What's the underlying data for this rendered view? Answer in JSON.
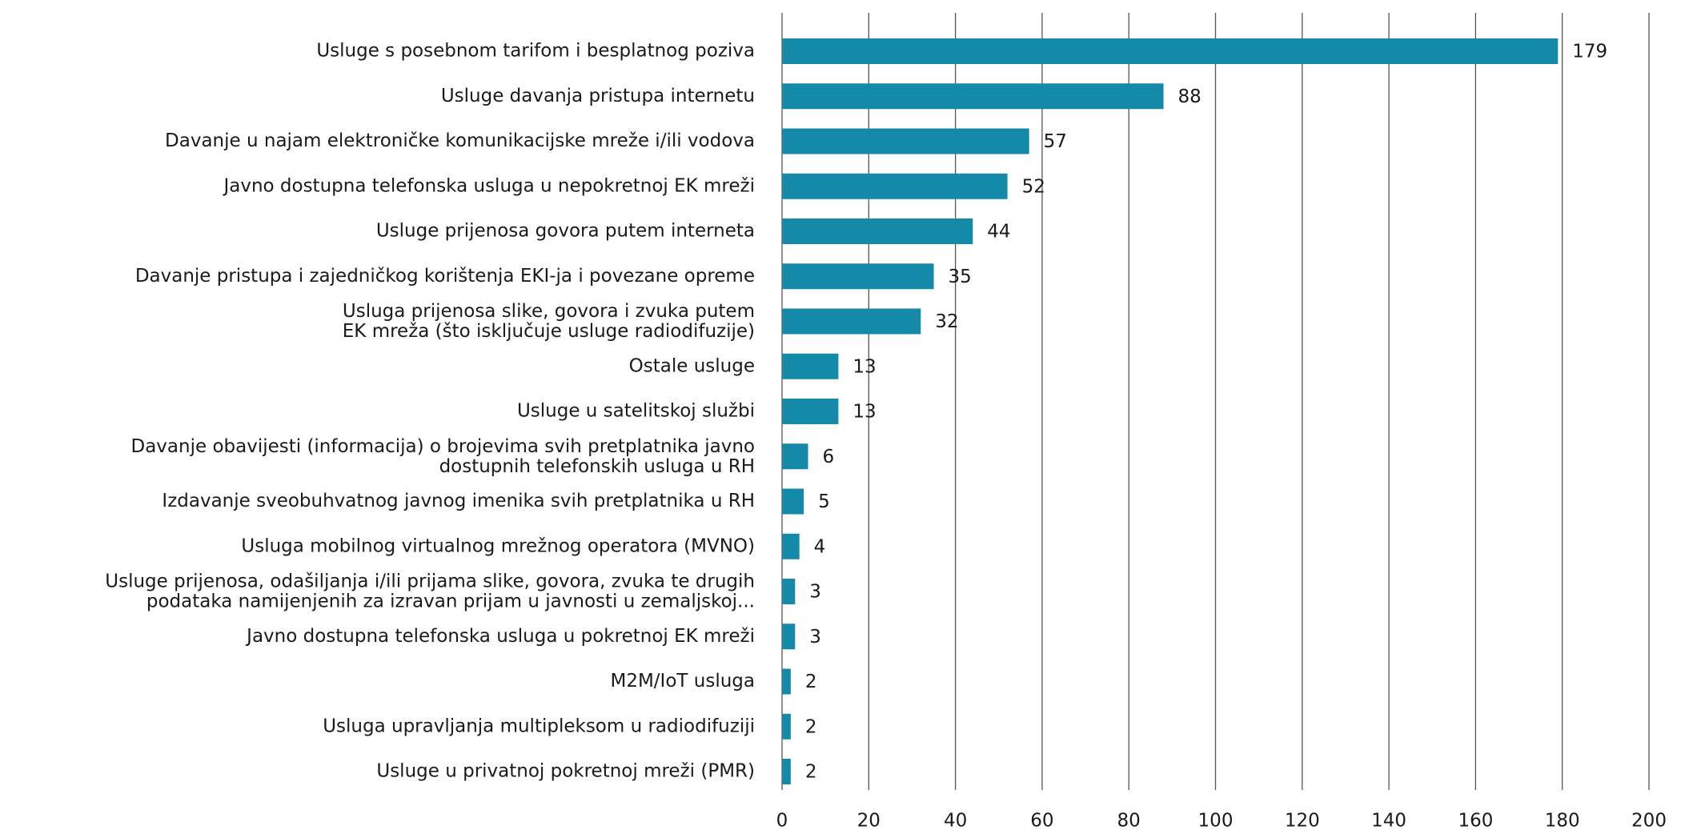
{
  "chart_data": {
    "type": "bar",
    "orientation": "horizontal",
    "categories": [
      "Usluge s posebnom tarifom i besplatnog poziva",
      "Usluge davanja pristupa internetu",
      "Davanje u najam elektroničke komunikacijske mreže i/ili vodova",
      "Javno dostupna telefonska usluga u nepokretnoj EK mreži",
      "Usluge prijenosa govora putem interneta",
      "Davanje pristupa i zajedničkog korištenja EKI-ja i povezane opreme",
      [
        "Usluga prijenosa slike, govora i zvuka putem",
        "EK mreža (što isključuje usluge radiodifuzije)"
      ],
      "Ostale usluge",
      "Usluge u satelitskoj službi",
      [
        "Davanje obavijesti (informacija) o brojevima svih pretplatnika javno",
        "dostupnih telefonskih usluga u RH"
      ],
      "Izdavanje sveobuhvatnog javnog imenika svih pretplatnika u RH",
      "Usluga mobilnog virtualnog mrežnog operatora (MVNO)",
      [
        "Usluge prijenosa, odašiljanja i/ili prijama slike, govora, zvuka te drugih",
        "podataka namijenjenih za izravan prijam u javnosti u zemaljskoj..."
      ],
      "Javno dostupna telefonska usluga u pokretnoj EK mreži",
      "M2M/IoT usluga",
      "Usluga upravljanja multipleksom u radiodifuziji",
      "Usluge u privatnoj pokretnoj mreži (PMR)"
    ],
    "values": [
      179,
      88,
      57,
      52,
      44,
      35,
      32,
      13,
      13,
      6,
      5,
      4,
      3,
      3,
      2,
      2,
      2
    ],
    "color": "#1589a8",
    "xlim": [
      0,
      200
    ],
    "xticks": [
      0,
      20,
      40,
      60,
      80,
      100,
      120,
      140,
      160,
      180,
      200
    ],
    "grid": true
  }
}
